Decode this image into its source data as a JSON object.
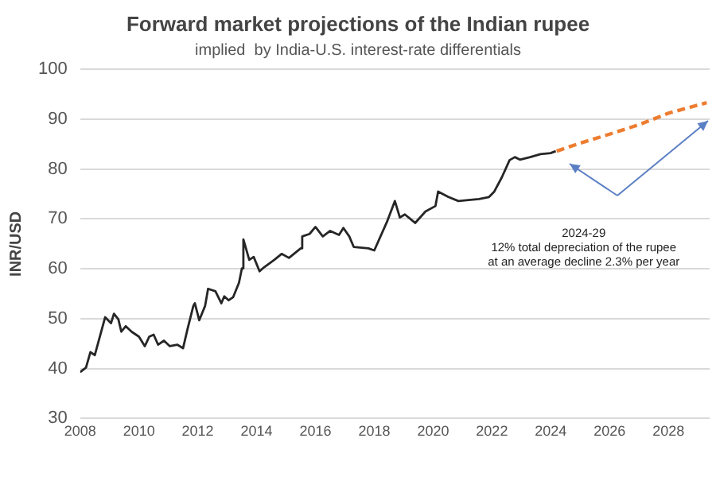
{
  "chart_data": {
    "type": "line",
    "title": "Forward market projections of the Indian rupee",
    "subtitle": "implied  by India-U.S. interest-rate differentials",
    "ylabel": "INR/USD",
    "xlim": [
      2008,
      2029.4
    ],
    "xticks": [
      2008,
      2010,
      2012,
      2014,
      2016,
      2018,
      2020,
      2022,
      2024,
      2026,
      2028
    ],
    "ylim": [
      30,
      100
    ],
    "yticks": [
      30,
      40,
      50,
      60,
      70,
      80,
      90,
      100
    ],
    "grid": "y",
    "annotations": [
      "2024-29\n12% total depreciation of the rupee\nat an average decline 2.3% per year"
    ],
    "series": [
      {
        "color": "#262626",
        "line_style": "solid",
        "x": [
          2008.0,
          2008.2,
          2008.35,
          2008.5,
          2008.85,
          2009.05,
          2009.15,
          2009.3,
          2009.4,
          2009.55,
          2009.75,
          2010.0,
          2010.2,
          2010.35,
          2010.5,
          2010.65,
          2010.85,
          2011.05,
          2011.3,
          2011.5,
          2011.65,
          2011.85,
          2011.9,
          2012.05,
          2012.25,
          2012.35,
          2012.6,
          2012.8,
          2012.9,
          2013.05,
          2013.2,
          2013.4,
          2013.5,
          2013.55,
          2013.75,
          2013.9,
          2014.1,
          2014.25,
          2014.6,
          2014.85,
          2015.1,
          2015.5,
          2015.55,
          2015.8,
          2016.0,
          2016.25,
          2016.5,
          2016.8,
          2016.95,
          2017.15,
          2017.3,
          2017.8,
          2018.0,
          2018.43,
          2018.7,
          2018.87,
          2019.04,
          2019.39,
          2019.74,
          2020.08,
          2020.17,
          2020.52,
          2020.86,
          2021.2,
          2021.56,
          2021.9,
          2022.08,
          2022.34,
          2022.6,
          2022.78,
          2022.95,
          2023.3,
          2023.65,
          2023.99,
          2024.17
        ],
        "values": [
          39.3,
          40.2,
          43.3,
          42.7,
          50.3,
          49.1,
          51,
          49.9,
          47.4,
          48.5,
          47.4,
          46.4,
          44.5,
          46.4,
          46.8,
          44.8,
          45.6,
          44.5,
          44.8,
          44.1,
          47.9,
          52.6,
          53.1,
          49.7,
          52.6,
          56,
          55.5,
          53.1,
          54.5,
          53.7,
          54.3,
          57.2,
          60.1,
          65.9,
          61.8,
          62.4,
          59.5,
          60.3,
          61.8,
          63,
          62.2,
          64.1,
          66.5,
          67,
          68.4,
          66.5,
          67.6,
          66.8,
          68.2,
          66.5,
          64.4,
          64.1,
          63.7,
          69.4,
          73.6,
          70.3,
          70.9,
          69.2,
          71.5,
          72.6,
          75.5,
          74.4,
          73.6,
          73.8,
          74,
          74.4,
          75.5,
          78.4,
          81.8,
          82.4,
          81.9,
          82.4,
          83,
          83.2,
          83.6
        ]
      },
      {
        "color": "#ed7d31",
        "line_style": "dashed",
        "x": [
          2024.2,
          2025,
          2026,
          2027,
          2028,
          2029.3
        ],
        "values": [
          83.6,
          85.2,
          87,
          88.9,
          91.2,
          93.3
        ]
      }
    ]
  }
}
